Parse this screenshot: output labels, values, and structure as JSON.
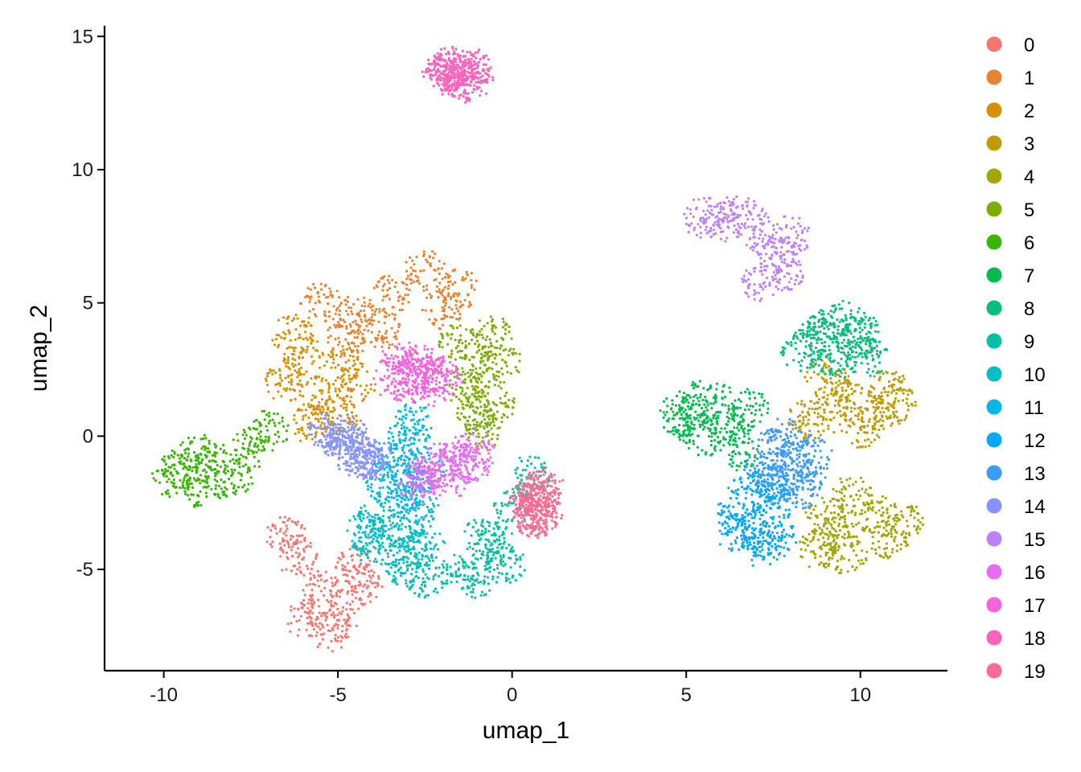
{
  "chart_data": {
    "type": "scatter",
    "title": "",
    "xlabel": "umap_1",
    "ylabel": "umap_2",
    "xlim": [
      -11.7,
      12.5
    ],
    "ylim": [
      -8.8,
      15.4
    ],
    "xticks": [
      -10,
      -5,
      0,
      5,
      10
    ],
    "yticks": [
      -5,
      0,
      5,
      10,
      15
    ],
    "xtick_labels": [
      "-10",
      "-5",
      "0",
      "5",
      "10"
    ],
    "ytick_labels": [
      "-5",
      "0",
      "5",
      "10",
      "15"
    ],
    "grid": false,
    "legend_position": "right",
    "series": [
      {
        "name": "0",
        "color": "#F8766D",
        "values": [
          [
            -5.5,
            -5.8
          ],
          [
            -6.2,
            -4.5
          ],
          [
            -4.8,
            -6.5
          ],
          [
            -5.9,
            -6.9
          ],
          [
            -4.5,
            -4.9
          ],
          [
            -6.5,
            -3.8
          ],
          [
            -5.2,
            -7.3
          ],
          [
            -4.3,
            -5.5
          ]
        ]
      },
      {
        "name": "1",
        "color": "#EA8331",
        "values": [
          [
            -4.5,
            4.5
          ],
          [
            -3.5,
            5.3
          ],
          [
            -2.5,
            6.2
          ],
          [
            -5.5,
            5.0
          ],
          [
            -2.0,
            4.8
          ],
          [
            -3.8,
            4.0
          ],
          [
            -1.5,
            5.5
          ],
          [
            -4.8,
            3.6
          ]
        ]
      },
      {
        "name": "2",
        "color": "#D89000",
        "values": [
          [
            -6.0,
            3.0
          ],
          [
            -5.5,
            1.5
          ],
          [
            -6.5,
            2.0
          ],
          [
            -4.8,
            2.8
          ],
          [
            -5.0,
            0.8
          ],
          [
            -6.3,
            3.8
          ],
          [
            -4.5,
            1.9
          ],
          [
            -5.8,
            0.5
          ]
        ]
      },
      {
        "name": "3",
        "color": "#C09B00",
        "values": [
          [
            9.5,
            1.5
          ],
          [
            10.5,
            1.0
          ],
          [
            9.0,
            2.2
          ],
          [
            8.5,
            0.6
          ],
          [
            10.8,
            1.8
          ],
          [
            10.0,
            0.3
          ],
          [
            9.2,
            0.9
          ],
          [
            11.0,
            1.2
          ]
        ]
      },
      {
        "name": "4",
        "color": "#A3A500",
        "values": [
          [
            9.5,
            -3.5
          ],
          [
            10.5,
            -3.0
          ],
          [
            8.8,
            -4.2
          ],
          [
            9.8,
            -2.2
          ],
          [
            10.8,
            -3.8
          ],
          [
            9.0,
            -3.0
          ],
          [
            11.2,
            -3.2
          ],
          [
            9.6,
            -4.5
          ]
        ]
      },
      {
        "name": "5",
        "color": "#7CAE00",
        "values": [
          [
            -1.0,
            2.5
          ],
          [
            -0.5,
            1.2
          ],
          [
            -1.5,
            3.5
          ],
          [
            -0.8,
            0.3
          ],
          [
            -0.3,
            2.8
          ],
          [
            -1.3,
            1.8
          ],
          [
            -0.6,
            3.8
          ],
          [
            -1.0,
            0.8
          ]
        ]
      },
      {
        "name": "6",
        "color": "#39B600",
        "values": [
          [
            -9.5,
            -1.2
          ],
          [
            -8.5,
            -1.0
          ],
          [
            -7.5,
            -0.5
          ],
          [
            -9.8,
            -1.5
          ],
          [
            -8.0,
            -1.6
          ],
          [
            -7.0,
            0.2
          ],
          [
            -9.0,
            -0.7
          ],
          [
            -8.8,
            -2.0
          ]
        ]
      },
      {
        "name": "7",
        "color": "#00BB4E",
        "values": [
          [
            5.0,
            0.6
          ],
          [
            6.0,
            1.2
          ],
          [
            5.5,
            0.0
          ],
          [
            6.8,
            1.0
          ],
          [
            4.8,
            0.8
          ],
          [
            6.5,
            -0.5
          ],
          [
            6.2,
            0.4
          ],
          [
            5.3,
            1.4
          ]
        ]
      },
      {
        "name": "8",
        "color": "#00BF7D",
        "values": [
          [
            9.0,
            4.0
          ],
          [
            9.8,
            3.5
          ],
          [
            8.3,
            3.2
          ],
          [
            9.5,
            4.3
          ],
          [
            10.2,
            3.0
          ],
          [
            8.8,
            3.7
          ],
          [
            9.3,
            2.8
          ],
          [
            10.0,
            3.9
          ]
        ]
      },
      {
        "name": "9",
        "color": "#00C1A3",
        "values": [
          [
            -1.5,
            -5.0
          ],
          [
            -0.5,
            -4.0
          ],
          [
            -2.5,
            -5.3
          ],
          [
            0.0,
            -2.5
          ],
          [
            -0.2,
            -4.8
          ],
          [
            -1.0,
            -5.3
          ],
          [
            0.5,
            -1.5
          ],
          [
            -0.8,
            -3.8
          ]
        ]
      },
      {
        "name": "10",
        "color": "#00BFC4",
        "values": [
          [
            -3.5,
            -3.5
          ],
          [
            -4.0,
            -4.0
          ],
          [
            -3.0,
            -4.5
          ],
          [
            -2.8,
            -3.2
          ],
          [
            -3.8,
            -3.0
          ],
          [
            -3.2,
            -4.8
          ],
          [
            -2.5,
            -4.2
          ],
          [
            -4.2,
            -3.6
          ]
        ]
      },
      {
        "name": "11",
        "color": "#00B8E5",
        "values": [
          [
            -3.2,
            -1.5
          ],
          [
            -3.0,
            0.0
          ],
          [
            -2.7,
            -2.5
          ],
          [
            -3.4,
            -0.8
          ],
          [
            -2.5,
            -1.2
          ],
          [
            -3.0,
            -2.0
          ],
          [
            -3.6,
            -1.8
          ],
          [
            -2.8,
            0.5
          ]
        ]
      },
      {
        "name": "12",
        "color": "#00A9FF",
        "values": [
          [
            7.0,
            -3.5
          ],
          [
            7.5,
            -2.5
          ],
          [
            6.5,
            -2.8
          ],
          [
            7.2,
            -4.2
          ],
          [
            6.8,
            -2.0
          ],
          [
            7.6,
            -3.8
          ],
          [
            6.4,
            -3.6
          ],
          [
            7.3,
            -1.8
          ]
        ]
      },
      {
        "name": "13",
        "color": "#3C9BFF",
        "values": [
          [
            8.0,
            -1.0
          ],
          [
            7.5,
            -0.5
          ],
          [
            8.4,
            -1.5
          ],
          [
            7.8,
            -0.1
          ],
          [
            8.2,
            -2.0
          ],
          [
            7.3,
            -1.2
          ],
          [
            8.6,
            -0.7
          ],
          [
            7.6,
            -1.8
          ]
        ]
      },
      {
        "name": "14",
        "color": "#8794FF",
        "values": [
          [
            -4.5,
            -0.4
          ],
          [
            -5.0,
            -0.1
          ],
          [
            -4.2,
            -0.8
          ],
          [
            -4.8,
            -0.5
          ],
          [
            -5.3,
            0.1
          ],
          [
            -4.3,
            -1.0
          ],
          [
            -4.7,
            0.1
          ],
          [
            -4.0,
            -0.9
          ]
        ]
      },
      {
        "name": "15",
        "color": "#BF80FF",
        "values": [
          [
            6.0,
            8.0
          ],
          [
            7.0,
            7.8
          ],
          [
            7.5,
            6.8
          ],
          [
            7.2,
            5.8
          ],
          [
            8.0,
            7.5
          ],
          [
            5.5,
            8.2
          ],
          [
            7.8,
            6.2
          ],
          [
            6.5,
            8.3
          ]
        ]
      },
      {
        "name": "16",
        "color": "#E76BF3",
        "values": [
          [
            -2.0,
            -1.0
          ],
          [
            -1.5,
            -0.8
          ],
          [
            -2.5,
            -1.5
          ],
          [
            -1.0,
            -0.5
          ],
          [
            -2.2,
            -1.2
          ],
          [
            -1.8,
            -1.6
          ],
          [
            -1.2,
            -1.0
          ],
          [
            -2.7,
            -1.8
          ]
        ]
      },
      {
        "name": "17",
        "color": "#F962DD",
        "values": [
          [
            -2.8,
            2.5
          ],
          [
            -3.0,
            2.0
          ],
          [
            -2.4,
            2.3
          ],
          [
            -3.2,
            2.8
          ],
          [
            -2.0,
            2.2
          ],
          [
            -2.6,
            2.7
          ],
          [
            -3.4,
            2.1
          ],
          [
            -2.2,
            1.9
          ]
        ]
      },
      {
        "name": "18",
        "color": "#FF62BC",
        "values": [
          [
            -1.8,
            13.7
          ],
          [
            -1.5,
            13.5
          ],
          [
            -1.2,
            13.8
          ],
          [
            -1.9,
            13.8
          ],
          [
            -1.3,
            13.3
          ],
          [
            -1.6,
            13.9
          ],
          [
            -2.0,
            13.6
          ],
          [
            -1.1,
            13.4
          ]
        ]
      },
      {
        "name": "19",
        "color": "#FF6C91",
        "values": [
          [
            0.8,
            -2.5
          ],
          [
            0.7,
            -2.0
          ],
          [
            0.9,
            -2.8
          ],
          [
            0.6,
            -3.0
          ],
          [
            0.8,
            -2.2
          ],
          [
            0.5,
            -2.6
          ],
          [
            0.9,
            -1.9
          ],
          [
            0.7,
            -3.1
          ]
        ]
      }
    ]
  }
}
